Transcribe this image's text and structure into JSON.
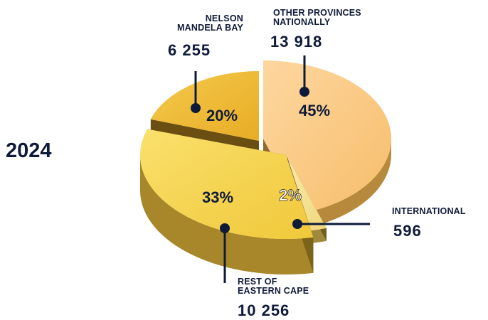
{
  "year": "2024",
  "chart_data": {
    "type": "pie",
    "slices": [
      {
        "key": "nmb",
        "label_lines": [
          "NELSON",
          "MANDELA BAY"
        ],
        "value_text": "6 255",
        "value": 6255,
        "percent_text": "20%",
        "percent": 20,
        "color": "#f2bd3c"
      },
      {
        "key": "other",
        "label_lines": [
          "OTHER PROVINCES",
          "NATIONALLY"
        ],
        "value_text": "13 918",
        "value": 13918,
        "percent_text": "45%",
        "percent": 45,
        "color": "#fccb7c"
      },
      {
        "key": "intl",
        "label_lines": [
          "INTERNATIONAL"
        ],
        "value_text": "596",
        "value": 596,
        "percent_text": "2%",
        "percent": 2,
        "color": "#f3e08a"
      },
      {
        "key": "rec",
        "label_lines": [
          "REST OF",
          "EASTERN CAPE"
        ],
        "value_text": "10 256",
        "value": 10256,
        "percent_text": "33%",
        "percent": 33,
        "color": "#f6d552"
      }
    ]
  }
}
